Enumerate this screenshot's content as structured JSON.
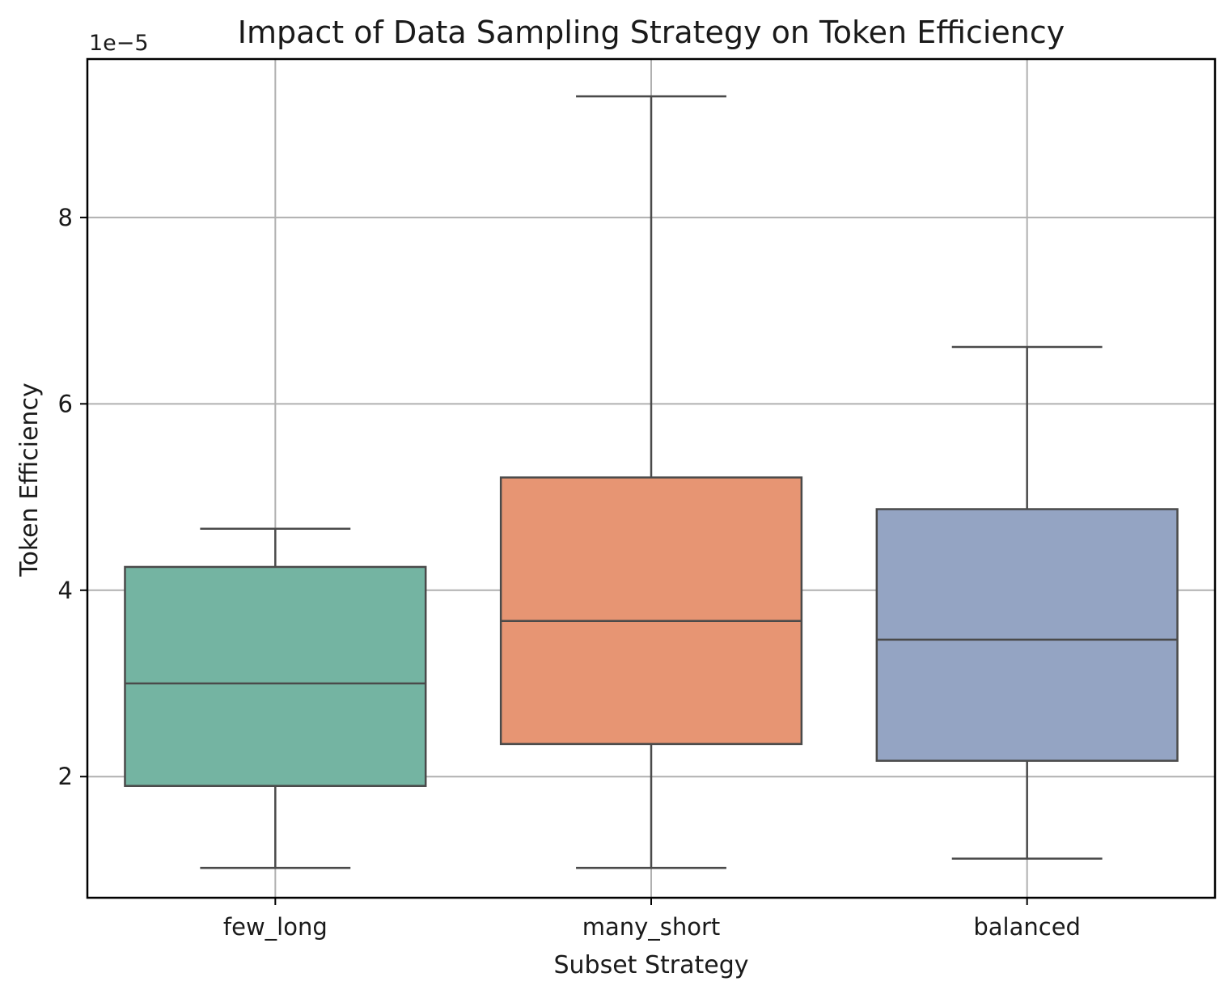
{
  "chart_data": {
    "type": "box",
    "title": "Impact of Data Sampling Strategy on Token Efficiency",
    "xlabel": "Subset Strategy",
    "ylabel": "Token Efficiency",
    "y_offset_label": "1e−5",
    "y_scale": 1e-05,
    "ylim": [
      0.7,
      9.7
    ],
    "yticks": [
      2,
      4,
      6,
      8
    ],
    "ytick_labels": [
      "2",
      "4",
      "6",
      "8"
    ],
    "grid": true,
    "categories": [
      "few_long",
      "many_short",
      "balanced"
    ],
    "boxes": [
      {
        "name": "few_long",
        "whislo": 1.02,
        "q1": 1.9,
        "med": 3.0,
        "q3": 4.25,
        "whishi": 4.66,
        "color": "#74b4a2"
      },
      {
        "name": "many_short",
        "whislo": 1.02,
        "q1": 2.35,
        "med": 3.67,
        "q3": 5.21,
        "whishi": 9.3,
        "color": "#e79573"
      },
      {
        "name": "balanced",
        "whislo": 1.12,
        "q1": 2.17,
        "med": 3.47,
        "q3": 4.87,
        "whishi": 6.61,
        "color": "#94a4c3"
      }
    ]
  }
}
